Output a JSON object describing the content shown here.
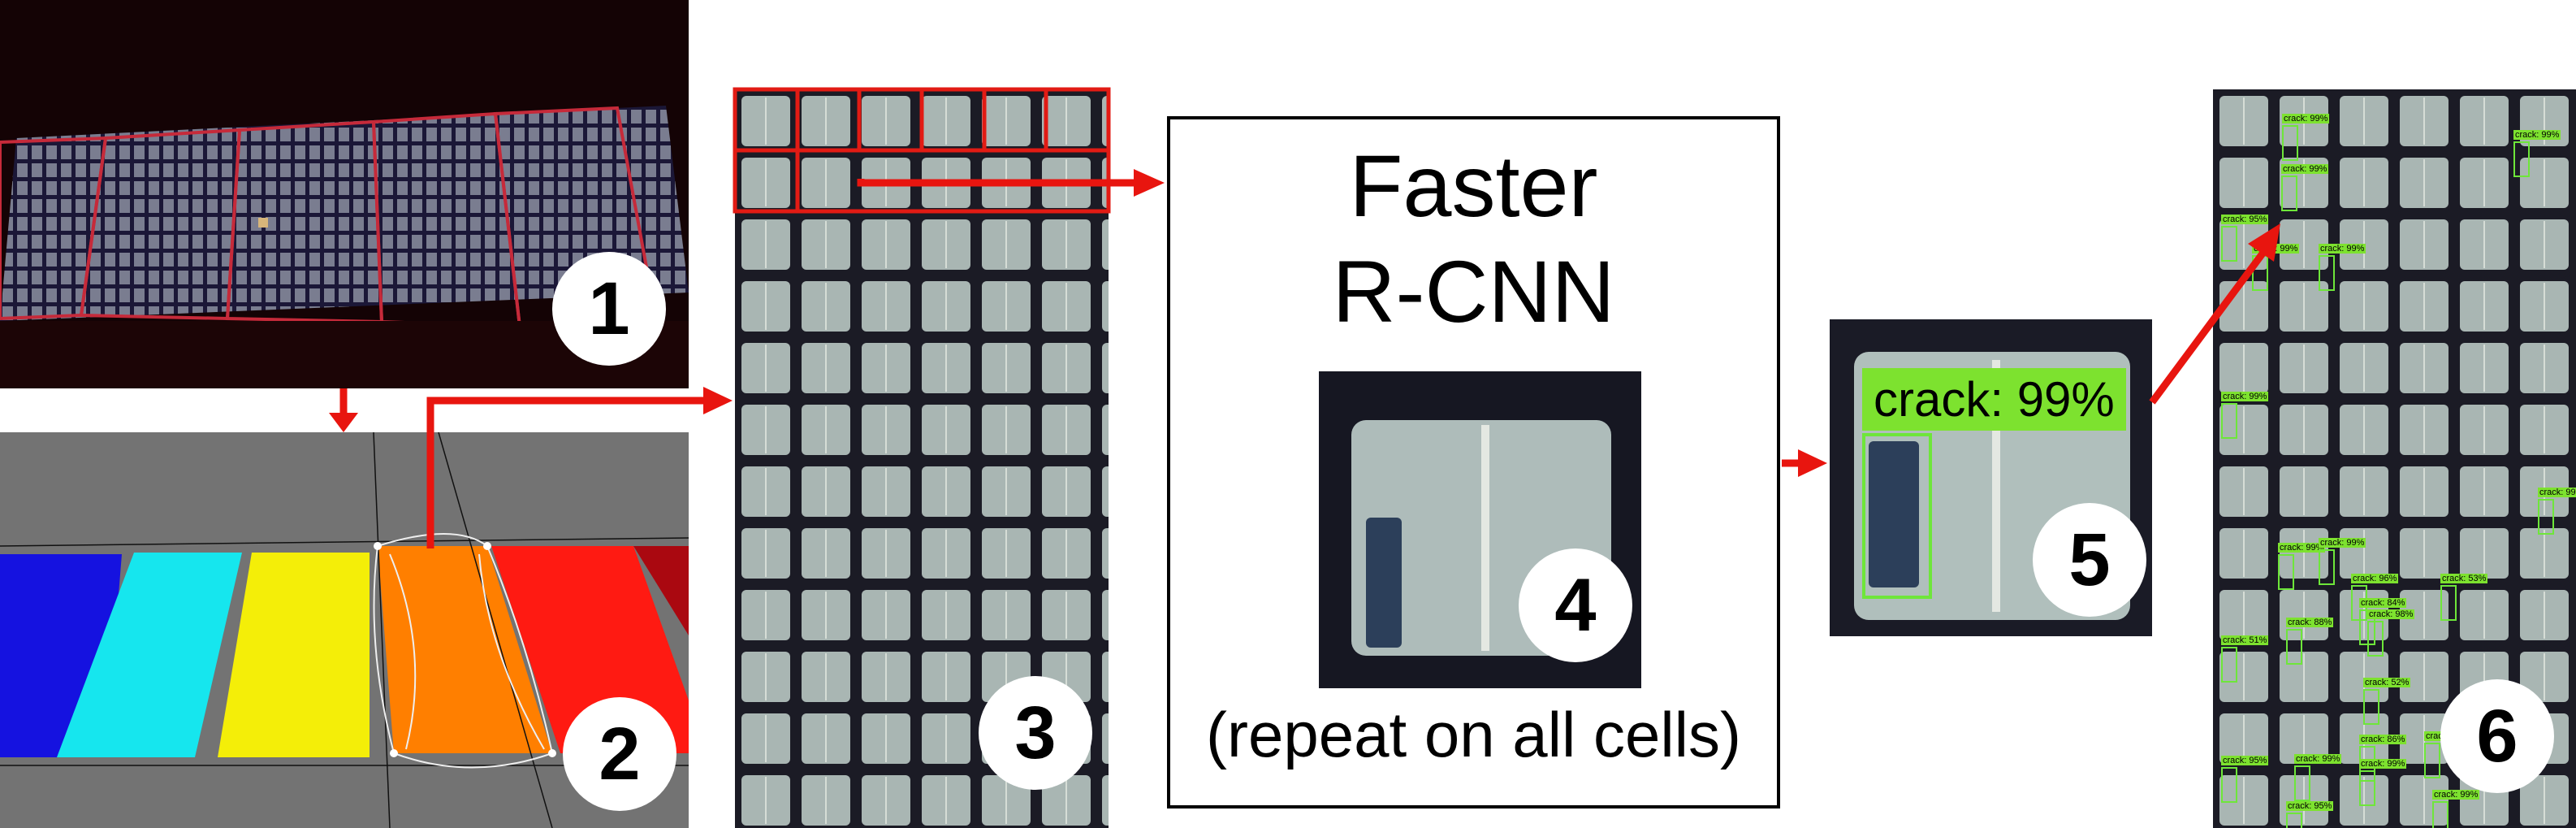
{
  "steps": {
    "step1": "1",
    "step2": "2",
    "step3": "3",
    "step4": "4",
    "step5": "5",
    "step6": "6"
  },
  "model": {
    "title_line1": "Faster",
    "title_line2": "R-CNN",
    "repeat_note": "(repeat on all cells)"
  },
  "detection": {
    "main_label": "crack: 99%"
  },
  "results": {
    "labels": [
      "crack: 99%",
      "crack: 99%",
      "crack: 95%",
      "crack: 99%",
      "crack: 99%",
      "crack: 99%",
      "crack: 99%",
      "crack: 99%",
      "crack: 99%",
      "crack: 99%",
      "crack: 96%",
      "crack: 53%",
      "crack: 84%",
      "crack: 98%",
      "crack: 88%",
      "crack: 51%",
      "crack: 52%",
      "crack: 86%",
      "crack: 99%",
      "crack: 99%",
      "crack: 95%",
      "crack: 99%",
      "crack: 95%",
      "crack: 99%"
    ]
  },
  "colors": {
    "arrow": "#e8150f",
    "highlight": "#e21b14",
    "label_bg": "#7de22f"
  }
}
